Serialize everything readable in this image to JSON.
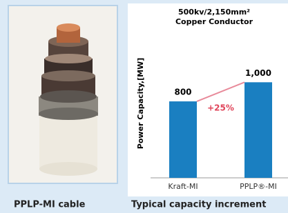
{
  "chart_data": {
    "type": "bar",
    "title": "500kv/2,150mm²",
    "subtitle": "Copper Conductor",
    "y_label": "Power Capacity,[MW]",
    "categories": [
      "Kraft-MI",
      "PPLP®-MI"
    ],
    "values": [
      800,
      1000
    ],
    "value_labels": [
      "800",
      "1,000"
    ],
    "color": "#1a7fc1",
    "ylim": [
      0,
      1500
    ],
    "annotation": "+25%",
    "caption": "Typical capacity increment"
  },
  "photo": {
    "caption": "PPLP-MI cable"
  }
}
